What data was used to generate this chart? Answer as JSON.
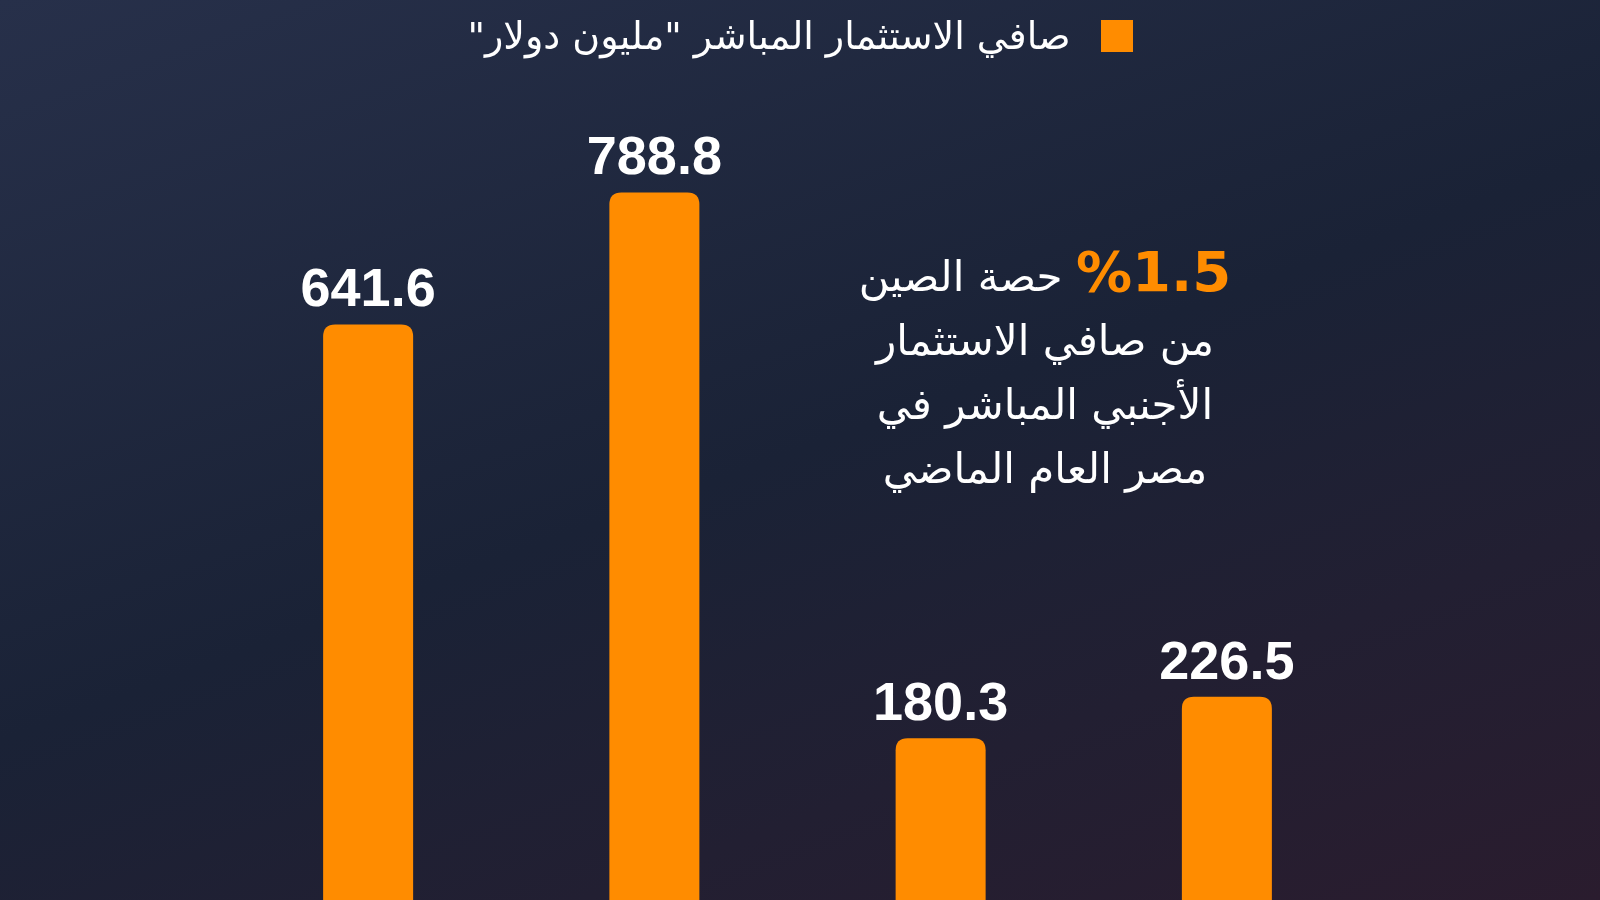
{
  "chart_data": {
    "type": "bar",
    "categories": [
      null,
      null,
      null,
      null
    ],
    "series": [
      {
        "name": "صافي الاستثمار المباشر \"مليون دولار\"",
        "color": "#ff8c00",
        "values": [
          641.6,
          788.8,
          180.3,
          226.5
        ]
      }
    ],
    "data_labels": true,
    "legend": "top",
    "annotations": [
      "%1.5 حصة الصين من صافي الاستثمار الأجنبي المباشر في مصر العام الماضي"
    ]
  }
}
